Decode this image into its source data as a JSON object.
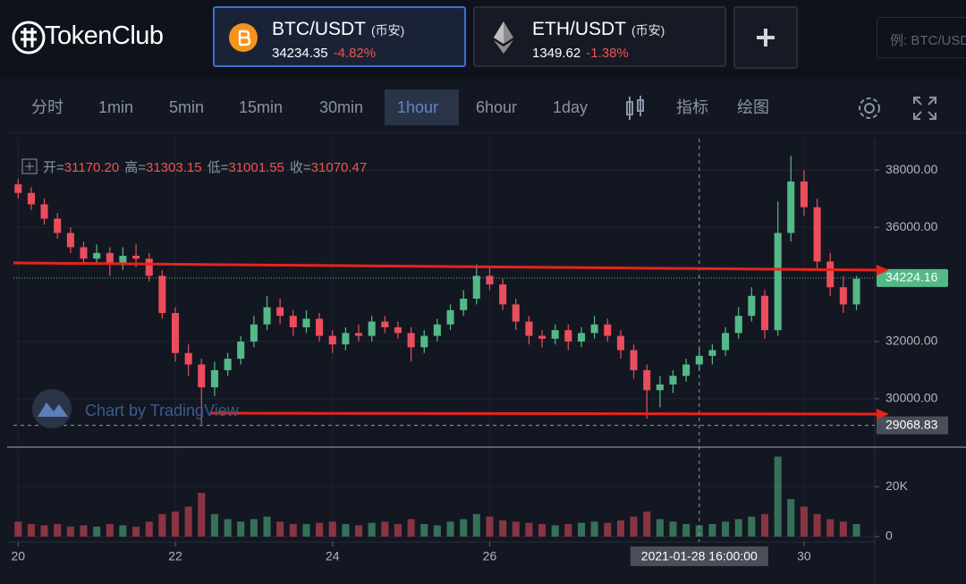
{
  "header": {
    "logo": "TokenClub",
    "tabs": [
      {
        "pair": "BTC/USDT",
        "exchange": "(币安)",
        "price": 34234.35,
        "change": "-4.82%"
      },
      {
        "pair": "ETH/USDT",
        "exchange": "(币安)",
        "price": 1349.62,
        "change": "-1.38%"
      }
    ],
    "search_placeholder": "例: BTC/USDT"
  },
  "toolbar": {
    "intervals": [
      "分时",
      "1min",
      "5min",
      "15min",
      "30min",
      "1hour",
      "6hour",
      "1day"
    ],
    "active": "1hour",
    "tools": [
      "指标",
      "绘图"
    ]
  },
  "legend": [
    {
      "label": "开=",
      "value": "31170.20"
    },
    {
      "label": "高=",
      "value": "31303.15"
    },
    {
      "label": "低=",
      "value": "31001.55"
    },
    {
      "label": "收=",
      "value": "31070.47"
    }
  ],
  "watermark": "Chart by TradingView",
  "chart_data": {
    "type": "candlestick",
    "up_color": "#53b987",
    "down_color": "#eb4d5c",
    "x": [
      20,
      20.167,
      20.333,
      20.5,
      20.667,
      20.833,
      21,
      21.167,
      21.333,
      21.5,
      21.667,
      21.833,
      22,
      22.167,
      22.333,
      22.5,
      22.667,
      22.833,
      23,
      23.167,
      23.333,
      23.5,
      23.667,
      23.833,
      24,
      24.167,
      24.333,
      24.5,
      24.667,
      24.833,
      25,
      25.167,
      25.333,
      25.5,
      25.667,
      25.833,
      26,
      26.167,
      26.333,
      26.5,
      26.667,
      26.833,
      27,
      27.167,
      27.333,
      27.5,
      27.667,
      27.833,
      28,
      28.167,
      28.333,
      28.5,
      28.667,
      28.833,
      29,
      29.167,
      29.333,
      29.5,
      29.667,
      29.833,
      30,
      30.167,
      30.333,
      30.5,
      30.667
    ],
    "open": [
      37500,
      37200,
      36800,
      36300,
      35800,
      35300,
      34900,
      35100,
      34700,
      35000,
      34900,
      34300,
      33000,
      31600,
      31200,
      30400,
      31000,
      31400,
      32000,
      32600,
      33200,
      32900,
      32500,
      32800,
      32200,
      31900,
      32300,
      32200,
      32700,
      32500,
      32300,
      31800,
      32200,
      32600,
      33100,
      33500,
      34300,
      34000,
      33300,
      32700,
      32200,
      32100,
      32400,
      32000,
      32300,
      32600,
      32200,
      31700,
      31000,
      30300,
      30500,
      30800,
      31200,
      31500,
      31700,
      32300,
      32900,
      33600,
      32400,
      35800,
      37600,
      36700,
      34800,
      33900,
      33300
    ],
    "high": [
      37700,
      37400,
      37000,
      36500,
      36000,
      35500,
      35400,
      35300,
      35300,
      35400,
      35100,
      34500,
      33200,
      31900,
      31400,
      31300,
      31600,
      32200,
      32900,
      33600,
      33500,
      33100,
      33100,
      33000,
      32400,
      32500,
      32600,
      32900,
      32900,
      32700,
      32500,
      32400,
      32800,
      33300,
      33800,
      34700,
      34600,
      34200,
      33500,
      32900,
      32400,
      32600,
      32600,
      32500,
      32900,
      32800,
      32400,
      31900,
      31200,
      30800,
      31000,
      31400,
      31800,
      31900,
      32500,
      33200,
      33900,
      33800,
      36900,
      38500,
      38000,
      37000,
      35100,
      34300,
      34300
    ],
    "low": [
      37000,
      36600,
      36100,
      35600,
      35100,
      34700,
      34700,
      34300,
      34500,
      34600,
      34100,
      32800,
      31300,
      30800,
      29100,
      30100,
      30800,
      31200,
      31800,
      32400,
      32600,
      32200,
      32300,
      32000,
      31600,
      31700,
      32000,
      32000,
      32300,
      32100,
      31300,
      31600,
      32000,
      32400,
      32900,
      33300,
      33800,
      33100,
      32400,
      31900,
      31800,
      31900,
      31700,
      31800,
      32100,
      32000,
      31400,
      30700,
      29300,
      29700,
      30200,
      30600,
      31000,
      31200,
      31500,
      32100,
      32700,
      32100,
      32200,
      35500,
      36400,
      34500,
      33600,
      33000,
      33100
    ],
    "close": [
      37200,
      36800,
      36300,
      35800,
      35300,
      34900,
      35100,
      34700,
      35000,
      34900,
      34300,
      33000,
      31600,
      31200,
      30400,
      31000,
      31400,
      32000,
      32600,
      33200,
      32900,
      32500,
      32800,
      32200,
      31900,
      32300,
      32200,
      32700,
      32500,
      32300,
      31800,
      32200,
      32600,
      33100,
      33500,
      34300,
      34000,
      33300,
      32700,
      32200,
      32100,
      32400,
      32000,
      32300,
      32600,
      32200,
      31700,
      31000,
      30300,
      30500,
      30800,
      31200,
      31500,
      31700,
      32300,
      32900,
      33600,
      32400,
      35800,
      37600,
      36700,
      34800,
      33900,
      33300,
      34200
    ],
    "volume": [
      6000,
      5000,
      4500,
      5000,
      4000,
      4500,
      4000,
      5000,
      4500,
      4000,
      6000,
      9000,
      10000,
      12000,
      17500,
      9000,
      7000,
      6000,
      7000,
      8000,
      6000,
      5000,
      5000,
      5500,
      6000,
      5000,
      4500,
      5500,
      6000,
      5000,
      7000,
      5000,
      4500,
      6000,
      7000,
      9000,
      8000,
      6500,
      6000,
      5500,
      5000,
      4500,
      5000,
      5500,
      6000,
      5500,
      6500,
      8000,
      10000,
      7000,
      6000,
      5000,
      4500,
      5000,
      6000,
      7000,
      8000,
      9000,
      32000,
      15000,
      12000,
      9000,
      7000,
      6000,
      5000
    ],
    "xlim": [
      19.94,
      30.9
    ],
    "xticks": [
      20,
      22,
      24,
      26,
      30
    ],
    "ylim": [
      28400,
      39100
    ],
    "yticks": [
      {
        "value": 30000,
        "label": "30000.00"
      },
      {
        "value": 32000,
        "label": "32000.00"
      },
      {
        "value": 36000,
        "label": "36000.00"
      },
      {
        "value": 38000,
        "label": "38000.00"
      }
    ],
    "volume_ylim": [
      0,
      34000
    ],
    "volume_yticks": [
      0,
      {
        "value": 20000,
        "label": "20K"
      }
    ],
    "last_price": 34224.16,
    "crosshair": {
      "x": 28.667,
      "label": "2021-01-28 16:00:00",
      "price": 29068.83
    },
    "grid": true
  }
}
